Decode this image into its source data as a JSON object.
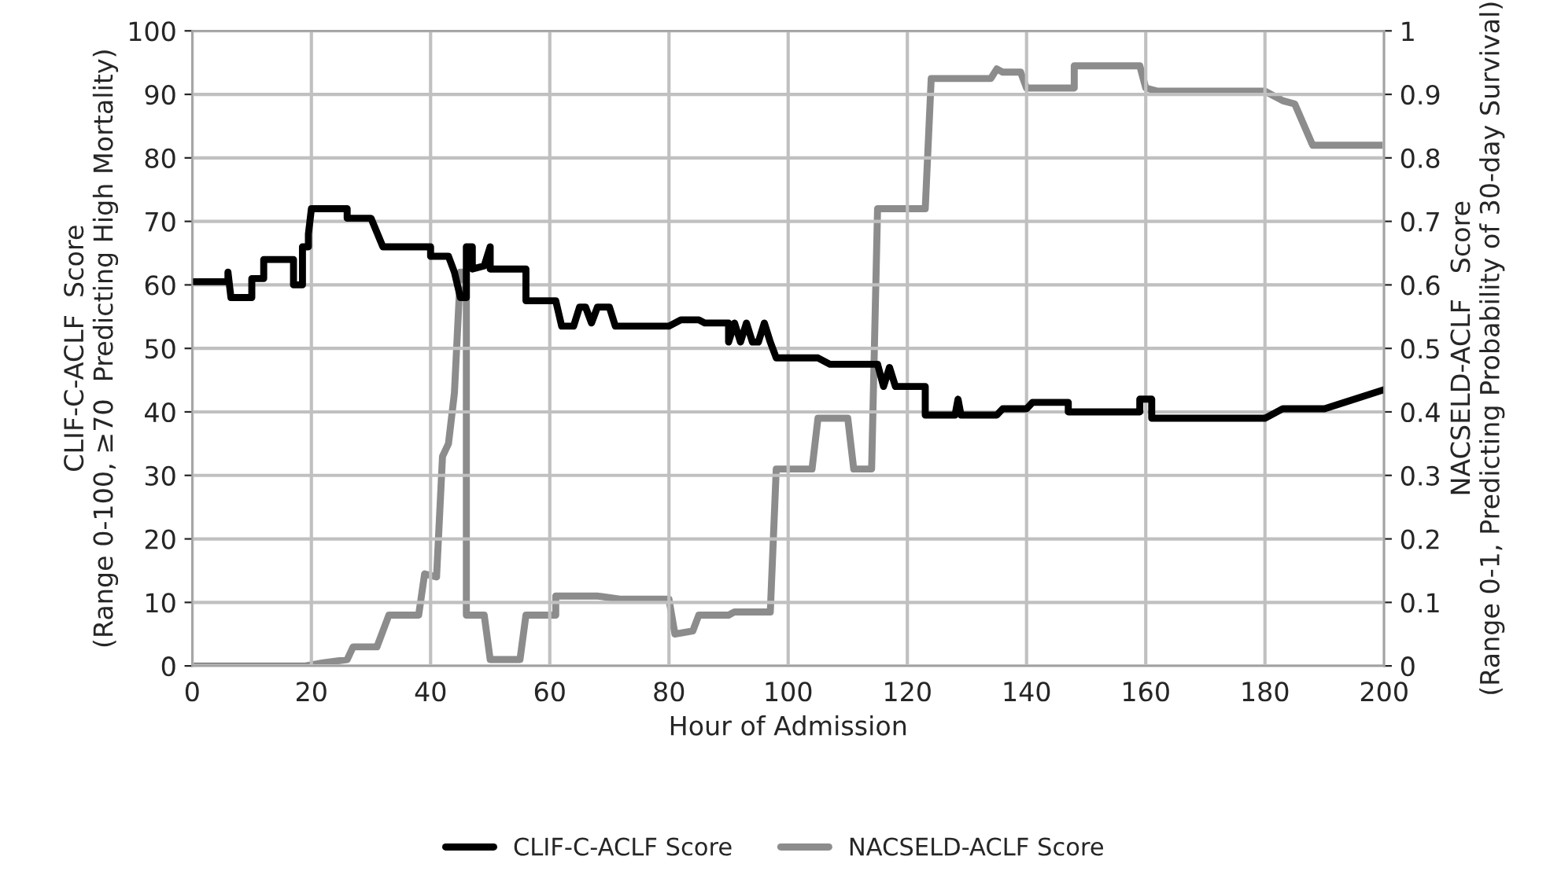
{
  "chart_data": {
    "type": "line",
    "xlabel": "Hour of Admission",
    "ylabel": "CLIF-C-ACLF  Score\n(Range 0-100, ≥70  Predicting High Mortality)",
    "y2label": "NACSELD-ACLF   Score\n(Range 0-1, Predicting Probability of 30-day Survival)",
    "xlim": [
      0,
      200
    ],
    "xticks": [
      0,
      20,
      40,
      60,
      80,
      100,
      120,
      140,
      160,
      180,
      200
    ],
    "ylim": [
      0,
      100
    ],
    "yticks": [
      0,
      10,
      20,
      30,
      40,
      50,
      60,
      70,
      80,
      90,
      100
    ],
    "y2lim": [
      0,
      1
    ],
    "y2ticks": [
      0,
      0.1,
      0.2,
      0.3,
      0.4,
      0.5,
      0.6,
      0.7,
      0.8,
      0.9,
      1
    ],
    "grid": true,
    "legend": "bottom",
    "marker": "none",
    "line_style": "solid",
    "series": [
      {
        "name": "CLIF-C-ACLF Score",
        "color": "#000000",
        "x": [
          0,
          6,
          6,
          6.5,
          10,
          10,
          12,
          12,
          17,
          17,
          18.5,
          18.5,
          19.5,
          19.5,
          20,
          26,
          26,
          30,
          32,
          40,
          40,
          43,
          44,
          45,
          46,
          46,
          47,
          47,
          49,
          50,
          50,
          56,
          56,
          61,
          62,
          64,
          65,
          66,
          67,
          68,
          70,
          71,
          80,
          82,
          85,
          86,
          90,
          90,
          91,
          92,
          93,
          94,
          95,
          96,
          97,
          98,
          105,
          107,
          115,
          116,
          117,
          118,
          123,
          123,
          128,
          128.5,
          129,
          135,
          136,
          140,
          141,
          147,
          147,
          159,
          159,
          161,
          161,
          180,
          183,
          190,
          200
        ],
        "values": [
          60.5,
          60.5,
          62,
          58,
          58,
          61,
          61,
          64,
          64,
          60,
          60,
          66,
          66,
          68,
          72,
          72,
          70.5,
          70.5,
          66,
          66,
          64.5,
          64.5,
          62,
          58,
          58,
          66,
          66,
          62.5,
          63,
          66,
          62.5,
          62.5,
          57.5,
          57.5,
          53.5,
          53.5,
          56.5,
          56.5,
          54,
          56.5,
          56.5,
          53.5,
          53.5,
          54.5,
          54.5,
          54,
          54,
          51,
          54,
          51,
          54,
          51,
          51,
          54,
          51,
          48.5,
          48.5,
          47.5,
          47.5,
          44,
          47,
          44,
          44,
          39.5,
          39.5,
          42,
          39.5,
          39.5,
          40.5,
          40.5,
          41.5,
          41.5,
          40,
          40,
          42,
          42,
          39,
          39,
          40.5,
          40.5,
          43.5
        ]
      },
      {
        "name": "NACSELD-ACLF Score",
        "color": "#8c8c8c",
        "axis": "y2",
        "x": [
          0,
          19,
          22,
          26,
          27,
          31,
          33,
          38,
          39,
          41,
          42,
          43,
          44,
          45,
          46,
          46,
          47,
          49,
          50,
          55,
          56,
          61,
          61,
          68,
          72,
          80,
          81,
          84,
          85,
          90,
          91,
          97,
          98,
          104,
          105,
          110,
          111,
          114,
          115,
          123,
          124,
          134,
          135,
          136,
          139,
          140,
          148,
          148,
          159,
          160,
          162,
          180,
          183,
          185,
          188,
          200
        ],
        "values": [
          0,
          0,
          0.005,
          0.01,
          0.03,
          0.03,
          0.08,
          0.08,
          0.145,
          0.14,
          0.33,
          0.35,
          0.43,
          0.62,
          0.62,
          0.08,
          0.08,
          0.08,
          0.01,
          0.01,
          0.08,
          0.08,
          0.11,
          0.11,
          0.105,
          0.105,
          0.05,
          0.055,
          0.08,
          0.08,
          0.085,
          0.085,
          0.31,
          0.31,
          0.39,
          0.39,
          0.31,
          0.31,
          0.72,
          0.72,
          0.925,
          0.925,
          0.94,
          0.935,
          0.935,
          0.91,
          0.91,
          0.945,
          0.945,
          0.91,
          0.905,
          0.905,
          0.89,
          0.885,
          0.82,
          0.82
        ]
      }
    ]
  }
}
